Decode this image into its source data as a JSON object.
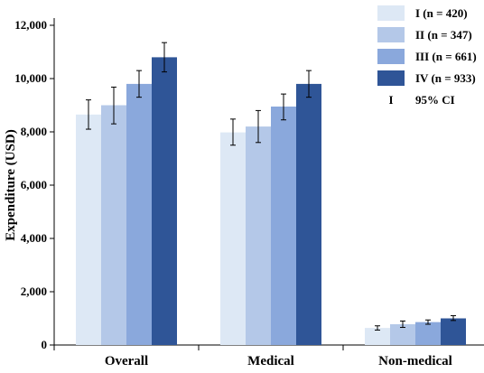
{
  "chart_data": {
    "type": "bar",
    "title": "",
    "xlabel": "",
    "ylabel": "Expenditure (USD)",
    "ylim": [
      0,
      12000
    ],
    "yticks": [
      0,
      2000,
      4000,
      6000,
      8000,
      10000,
      12000
    ],
    "ytick_labels": [
      "0",
      "2,000",
      "4,000",
      "6,000",
      "8,000",
      "10,000",
      "12,000"
    ],
    "categories": [
      "Overall",
      "Medical",
      "Non-medical"
    ],
    "grid": false,
    "legend_position": "top-right",
    "series": [
      {
        "name": "I (n = 420)",
        "color": "#dde8f5",
        "values": [
          8650,
          7980,
          640
        ],
        "ci_low": [
          8100,
          7500,
          560
        ],
        "ci_high": [
          9200,
          8480,
          720
        ]
      },
      {
        "name": "II (n = 347)",
        "color": "#b4c8e8",
        "values": [
          9000,
          8200,
          780
        ],
        "ci_low": [
          8300,
          7600,
          660
        ],
        "ci_high": [
          9680,
          8800,
          900
        ]
      },
      {
        "name": "III (n = 661)",
        "color": "#8aa8dc",
        "values": [
          9800,
          8950,
          860
        ],
        "ci_low": [
          9300,
          8450,
          780
        ],
        "ci_high": [
          10300,
          9420,
          940
        ]
      },
      {
        "name": "IV (n = 933)",
        "color": "#2f5597",
        "values": [
          10800,
          9800,
          1000
        ],
        "ci_low": [
          10250,
          9300,
          920
        ],
        "ci_high": [
          11350,
          10300,
          1100
        ]
      }
    ],
    "ci_legend_symbol": "I",
    "ci_legend_label": "95% CI"
  }
}
